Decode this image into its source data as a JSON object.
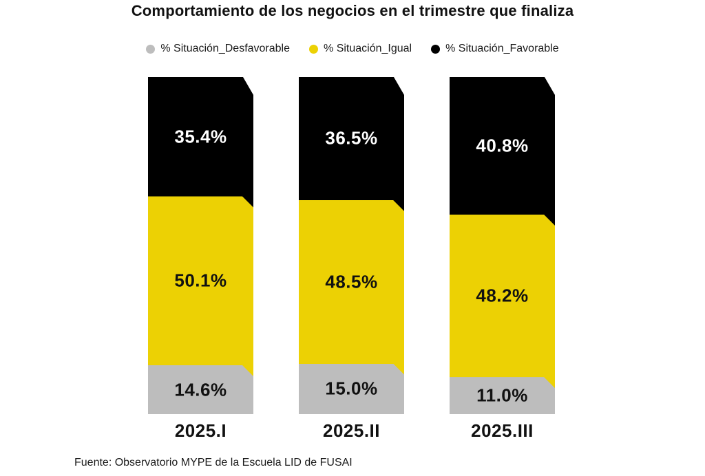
{
  "title": "Comportamiento de los negocios en el trimestre que finaliza",
  "source": "Fuente: Observatorio MYPE de la Escuela LID de FUSAI",
  "colors": {
    "background": "#ffffff",
    "desfavorable": "#bdbdbd",
    "igual": "#ecd104",
    "favorable": "#000000",
    "text": "#111111"
  },
  "legend": {
    "items": [
      {
        "label": "% Situación_Desfavorable",
        "color": "#bdbdbd"
      },
      {
        "label": "% Situación_Igual",
        "color": "#ecd104"
      },
      {
        "label": "% Situación_Favorable",
        "color": "#000000"
      }
    ]
  },
  "chart_data": {
    "type": "bar",
    "variant": "stacked-vertical",
    "title": "Comportamiento de los negocios en el trimestre que finaliza",
    "categories": [
      "2025.I",
      "2025.II",
      "2025.III"
    ],
    "series": [
      {
        "name": "% Situación_Desfavorable",
        "color": "#bdbdbd",
        "label_color": "#111111",
        "values": [
          14.6,
          15.0,
          11.0
        ]
      },
      {
        "name": "% Situación_Igual",
        "color": "#ecd104",
        "label_color": "#111111",
        "values": [
          50.1,
          48.5,
          48.2
        ]
      },
      {
        "name": "% Situación_Favorable",
        "color": "#000000",
        "label_color": "#ffffff",
        "values": [
          35.4,
          36.5,
          40.8
        ]
      }
    ],
    "stack_order_top_to_bottom": [
      "% Situación_Favorable",
      "% Situación_Igual",
      "% Situación_Desfavorable"
    ],
    "value_label_format": "0.0%",
    "ylim": [
      0,
      100
    ],
    "axes_visible": false,
    "gridlines": false,
    "legend_position": "top",
    "source": "Fuente: Observatorio MYPE de la Escuela LID de FUSAI"
  }
}
